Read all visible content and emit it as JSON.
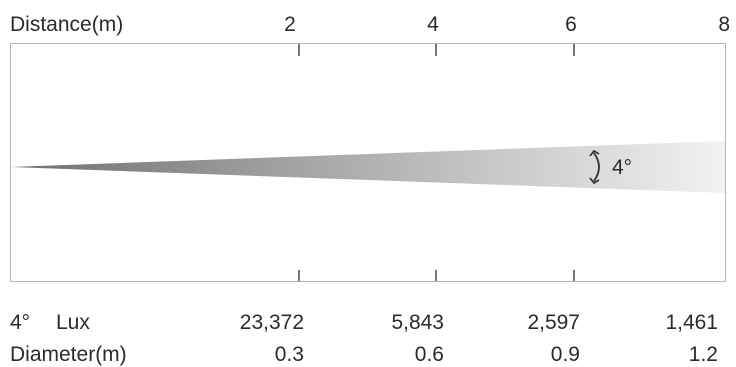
{
  "header": {
    "distance_label": "Distance(m)",
    "distance_ticks": [
      "2",
      "4",
      "6",
      "8"
    ]
  },
  "beam": {
    "angle_label": "4°",
    "gradient_start": "#6f6f6f",
    "gradient_end": "#f2f2f2",
    "frame_color": "#b5b5b5"
  },
  "table": {
    "lux_row": {
      "angle": "4°",
      "label": "Lux",
      "values": [
        "23,372",
        "5,843",
        "2,597",
        "1,461"
      ]
    },
    "diameter_row": {
      "label": "Diameter(m)",
      "values": [
        "0.3",
        "0.6",
        "0.9",
        "1.2"
      ]
    }
  }
}
